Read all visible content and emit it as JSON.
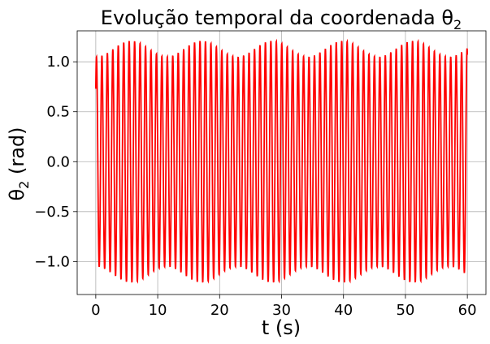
{
  "chart_data": {
    "type": "line",
    "title": "Evolução temporal da coordenada θ",
    "title_subscript": "2",
    "xlabel": "t (s)",
    "ylabel": "θ",
    "ylabel_subscript": "2",
    "ylabel_unit": " (rad)",
    "xlim": [
      -3,
      63
    ],
    "ylim": [
      -1.33,
      1.31
    ],
    "xticks": [
      0,
      10,
      20,
      30,
      40,
      50,
      60
    ],
    "xtick_labels": [
      "0",
      "10",
      "20",
      "30",
      "40",
      "50",
      "60"
    ],
    "yticks": [
      1.0,
      0.5,
      0.0,
      -0.5,
      -1.0
    ],
    "ytick_labels": [
      "1.0",
      "0.5",
      "0.0",
      "−0.5",
      "−1.0"
    ],
    "grid": true,
    "series": [
      {
        "color": "#ff0000",
        "x_start": 0,
        "x_end": 60,
        "initial_value": 0.73,
        "final_value": 0.74,
        "oscillation_period": 0.88,
        "beat_period": 11.4,
        "mean_amplitude": 1.13,
        "amplitude_variation": 0.08,
        "amplitude_max": 1.21,
        "amplitude_min": 1.05
      }
    ]
  }
}
